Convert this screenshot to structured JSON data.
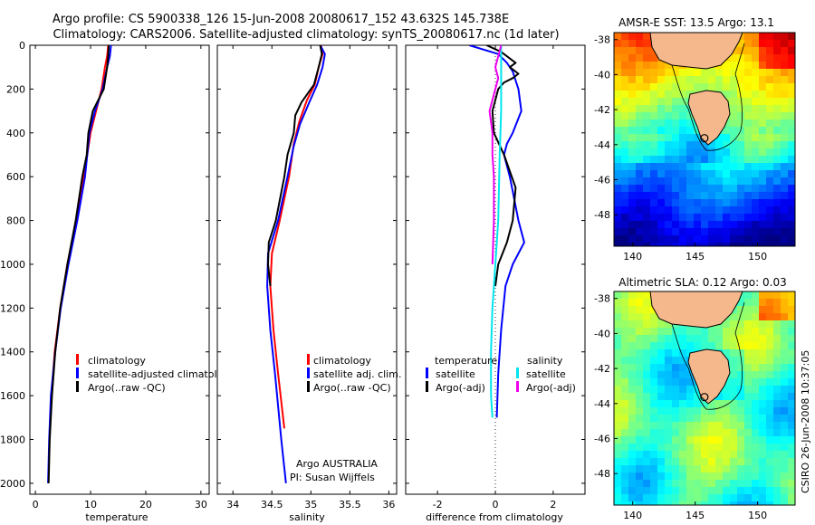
{
  "header": {
    "line1": "Argo profile: CS 5900338_126 15-Jun-2008 20080617_152 43.632S 145.738E",
    "line2": "Climatology: CARS2006. Satellite-adjusted climatology: synTS_20080617.nc (1d later)"
  },
  "watermark": "CSIRO 26-Jun-2008 10:37:05",
  "colors": {
    "red": "#ff0000",
    "blue": "#0000ff",
    "black": "#000000",
    "cyan": "#00e5ee",
    "magenta": "#ee00ee",
    "land": "#f5b88c"
  },
  "chart_data": [
    {
      "type": "line",
      "id": "temperature",
      "xlabel": "temperature",
      "ylabel": "",
      "xlim": [
        -1,
        31.5
      ],
      "ylim": [
        2050,
        0
      ],
      "xticks": [
        "0",
        "10",
        "20",
        "30"
      ],
      "yticks": [
        "0",
        "200",
        "400",
        "600",
        "800",
        "1000",
        "1200",
        "1400",
        "1600",
        "1800",
        "2000"
      ],
      "legend": [
        "climatology",
        "satellite-adjusted climatology",
        "Argo(..raw -QC)"
      ],
      "series": [
        {
          "name": "climatology",
          "color": "red",
          "points": [
            [
              13.2,
              0
            ],
            [
              13.0,
              50
            ],
            [
              12.6,
              100
            ],
            [
              12.0,
              200
            ],
            [
              11.0,
              300
            ],
            [
              10.0,
              400
            ],
            [
              8.8,
              600
            ],
            [
              7.4,
              800
            ],
            [
              5.8,
              1000
            ],
            [
              4.5,
              1200
            ],
            [
              3.5,
              1400
            ],
            [
              2.9,
              1600
            ],
            [
              2.6,
              1760
            ]
          ]
        },
        {
          "name": "satellite-adjusted climatology",
          "color": "blue",
          "points": [
            [
              13.7,
              0
            ],
            [
              13.5,
              50
            ],
            [
              13.0,
              100
            ],
            [
              12.2,
              200
            ],
            [
              10.8,
              300
            ],
            [
              9.8,
              400
            ],
            [
              9.0,
              600
            ],
            [
              7.6,
              800
            ],
            [
              6.0,
              1000
            ],
            [
              4.6,
              1200
            ],
            [
              3.6,
              1400
            ],
            [
              2.8,
              1600
            ],
            [
              2.5,
              1800
            ],
            [
              2.3,
              2000
            ]
          ]
        },
        {
          "name": "Argo(..raw -QC)",
          "color": "black",
          "points": [
            [
              13.3,
              0
            ],
            [
              13.2,
              50
            ],
            [
              13.0,
              100
            ],
            [
              12.4,
              200
            ],
            [
              10.4,
              300
            ],
            [
              9.6,
              400
            ],
            [
              9.3,
              500
            ],
            [
              8.5,
              600
            ],
            [
              7.3,
              800
            ],
            [
              5.8,
              1000
            ],
            [
              4.5,
              1200
            ],
            [
              3.6,
              1400
            ],
            [
              3.0,
              1600
            ],
            [
              2.6,
              1800
            ],
            [
              2.4,
              2000
            ]
          ]
        }
      ]
    },
    {
      "type": "line",
      "id": "salinity",
      "xlabel": "salinity",
      "xlim": [
        33.8,
        36.1
      ],
      "ylim": [
        2050,
        0
      ],
      "xticks": [
        "34",
        "34.5",
        "35",
        "35.5",
        "36"
      ],
      "legend": [
        "climatology",
        "satellite adj. clim.",
        "Argo(..raw -QC)"
      ],
      "annotations": [
        "Argo AUSTRALIA",
        "PI: Susan Wijffels"
      ],
      "series": [
        {
          "name": "climatology",
          "color": "red",
          "points": [
            [
              35.13,
              0
            ],
            [
              35.15,
              40
            ],
            [
              35.1,
              100
            ],
            [
              35.05,
              180
            ],
            [
              34.95,
              250
            ],
            [
              34.85,
              350
            ],
            [
              34.78,
              450
            ],
            [
              34.72,
              600
            ],
            [
              34.6,
              800
            ],
            [
              34.5,
              950
            ],
            [
              34.48,
              1100
            ],
            [
              34.52,
              1300
            ],
            [
              34.58,
              1500
            ],
            [
              34.66,
              1750
            ]
          ]
        },
        {
          "name": "satellite adj. clim.",
          "color": "blue",
          "points": [
            [
              35.12,
              0
            ],
            [
              35.18,
              40
            ],
            [
              35.15,
              100
            ],
            [
              35.08,
              180
            ],
            [
              34.98,
              260
            ],
            [
              34.86,
              360
            ],
            [
              34.78,
              460
            ],
            [
              34.7,
              600
            ],
            [
              34.58,
              800
            ],
            [
              34.45,
              950
            ],
            [
              34.44,
              1100
            ],
            [
              34.48,
              1300
            ],
            [
              34.54,
              1500
            ],
            [
              34.62,
              1800
            ],
            [
              34.68,
              2000
            ]
          ]
        },
        {
          "name": "Argo(..raw -QC)",
          "color": "black",
          "points": [
            [
              35.12,
              0
            ],
            [
              35.14,
              40
            ],
            [
              35.1,
              100
            ],
            [
              35.04,
              180
            ],
            [
              34.88,
              260
            ],
            [
              34.8,
              320
            ],
            [
              34.78,
              400
            ],
            [
              34.7,
              500
            ],
            [
              34.66,
              600
            ],
            [
              34.55,
              800
            ],
            [
              34.46,
              900
            ],
            [
              34.45,
              1000
            ],
            [
              34.48,
              1100
            ]
          ]
        }
      ]
    },
    {
      "type": "line",
      "id": "difference",
      "xlabel": "difference from climatology",
      "xlim": [
        -3.1,
        3.1
      ],
      "ylim": [
        2050,
        0
      ],
      "xticks": [
        "-2",
        "0",
        "2"
      ],
      "legend_titles": [
        "temperature",
        "salinity"
      ],
      "legend": [
        "satellite",
        "Argo(-adj)",
        "satellite",
        "Argo(-adj)"
      ],
      "series": [
        {
          "name": "temperature satellite",
          "color": "blue",
          "points": [
            [
              -0.9,
              0
            ],
            [
              0.1,
              40
            ],
            [
              0.4,
              80
            ],
            [
              0.6,
              120
            ],
            [
              0.8,
              200
            ],
            [
              0.9,
              300
            ],
            [
              0.6,
              400
            ],
            [
              0.4,
              450
            ],
            [
              0.3,
              500
            ],
            [
              0.5,
              600
            ],
            [
              0.8,
              800
            ],
            [
              1.0,
              900
            ],
            [
              0.6,
              1000
            ],
            [
              0.35,
              1100
            ],
            [
              0.2,
              1300
            ],
            [
              0.1,
              1500
            ],
            [
              0.05,
              1700
            ]
          ]
        },
        {
          "name": "temperature Argo(-adj)",
          "color": "black",
          "points": [
            [
              -0.3,
              0
            ],
            [
              0.2,
              30
            ],
            [
              0.7,
              80
            ],
            [
              0.5,
              100
            ],
            [
              0.8,
              130
            ],
            [
              0.6,
              150
            ],
            [
              0.3,
              170
            ],
            [
              0.1,
              200
            ],
            [
              -0.1,
              300
            ],
            [
              -0.05,
              400
            ],
            [
              0.3,
              500
            ],
            [
              0.7,
              650
            ],
            [
              0.6,
              800
            ],
            [
              0.4,
              900
            ],
            [
              0.1,
              1000
            ],
            [
              0.0,
              1100
            ]
          ]
        },
        {
          "name": "salinity satellite",
          "color": "cyan",
          "points": [
            [
              0.2,
              0
            ],
            [
              0.2,
              100
            ],
            [
              0.2,
              300
            ],
            [
              0.15,
              500
            ],
            [
              0.1,
              800
            ],
            [
              0.0,
              1000
            ],
            [
              -0.1,
              1200
            ],
            [
              -0.15,
              1400
            ],
            [
              -0.15,
              1600
            ],
            [
              -0.1,
              1700
            ]
          ]
        },
        {
          "name": "salinity Argo(-adj)",
          "color": "magenta",
          "points": [
            [
              0.2,
              0
            ],
            [
              0.1,
              50
            ],
            [
              0.0,
              100
            ],
            [
              0.1,
              150
            ],
            [
              0.0,
              200
            ],
            [
              -0.2,
              300
            ],
            [
              -0.1,
              400
            ],
            [
              -0.1,
              500
            ],
            [
              -0.05,
              600
            ],
            [
              -0.05,
              800
            ],
            [
              -0.1,
              1000
            ]
          ]
        }
      ]
    },
    {
      "type": "heatmap",
      "id": "sst-map",
      "title": "AMSR-E SST: 13.5 Argo: 13.1",
      "xticks": [
        "140",
        "145",
        "150"
      ],
      "yticks": [
        "-38",
        "-40",
        "-42",
        "-44",
        "-46",
        "-48"
      ],
      "xlim": [
        138.5,
        153
      ],
      "ylim": [
        -49.8,
        -37.6
      ],
      "argo_position": [
        145.738,
        -43.632
      ]
    },
    {
      "type": "heatmap",
      "id": "sla-map",
      "title": "Altimetric SLA: 0.12 Argo: 0.03",
      "xticks": [
        "140",
        "145",
        "150"
      ],
      "yticks": [
        "-38",
        "-40",
        "-42",
        "-44",
        "-46",
        "-48"
      ],
      "xlim": [
        138.5,
        153
      ],
      "ylim": [
        -49.8,
        -37.6
      ],
      "argo_position": [
        145.738,
        -43.632
      ]
    }
  ]
}
